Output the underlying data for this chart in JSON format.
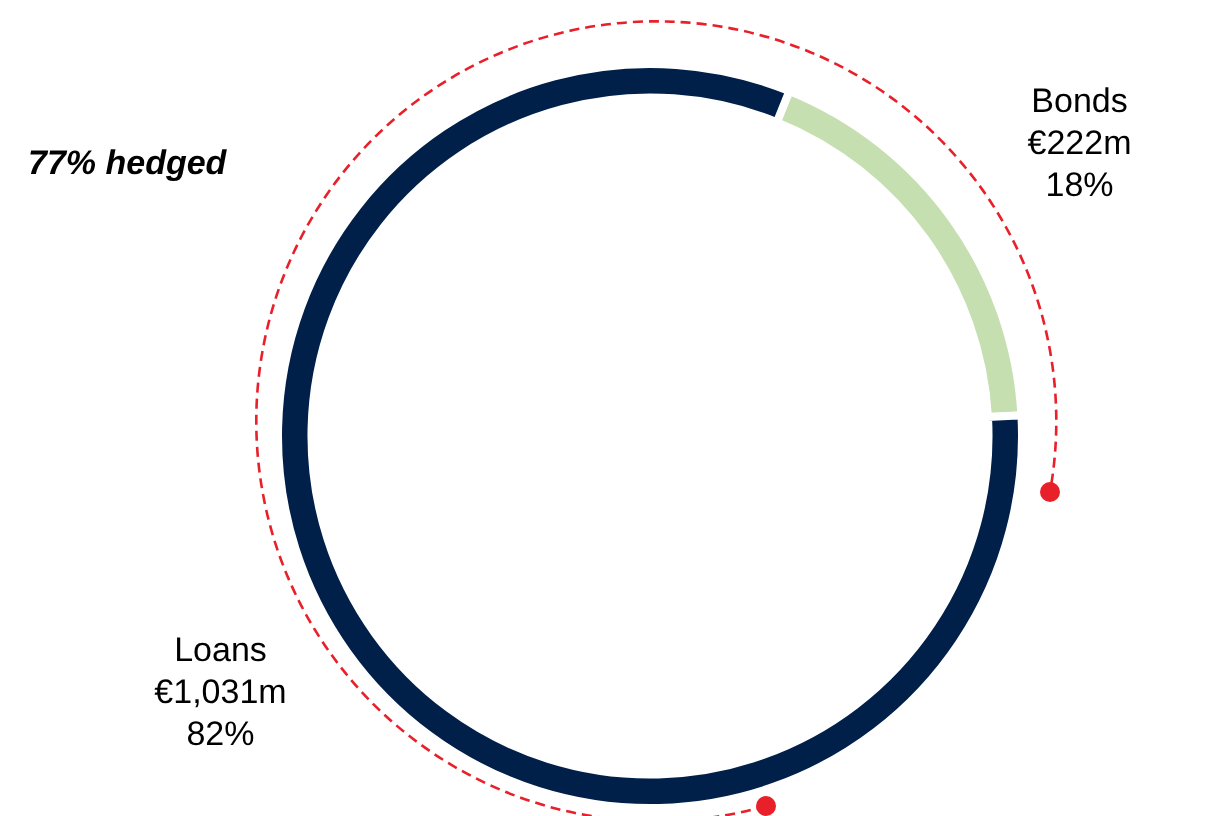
{
  "chart_data": {
    "type": "donut",
    "categories": [
      "Bonds",
      "Loans"
    ],
    "values": [
      18,
      82
    ],
    "colors": [
      "#c5dfb0",
      "#00204a"
    ],
    "value_labels": [
      "18%",
      "82%"
    ],
    "annotations": [
      "77% hedged",
      {
        "text": "€222m",
        "x": "Bonds"
      },
      {
        "text": "€1,031m",
        "x": "Loans"
      }
    ],
    "legend": false
  }
}
